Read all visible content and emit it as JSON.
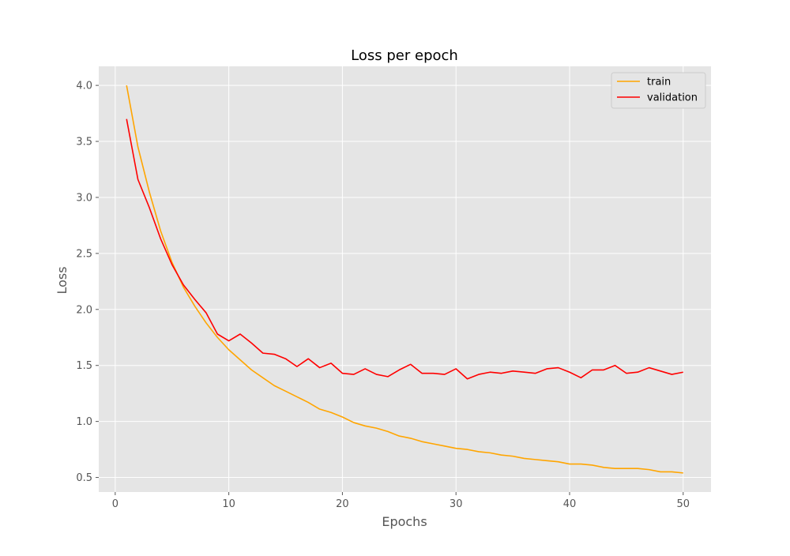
{
  "chart_data": {
    "type": "line",
    "title": "Loss per epoch",
    "xlabel": "Epochs",
    "ylabel": "Loss",
    "xlim": [
      -1.45,
      52.45
    ],
    "ylim": [
      0.37,
      4.17
    ],
    "xticks": [
      0,
      10,
      20,
      30,
      40,
      50
    ],
    "xtick_labels": [
      "0",
      "10",
      "20",
      "30",
      "40",
      "50"
    ],
    "yticks": [
      0.5,
      1.0,
      1.5,
      2.0,
      2.5,
      3.0,
      3.5,
      4.0
    ],
    "ytick_labels": [
      "0.5",
      "1.0",
      "1.5",
      "2.0",
      "2.5",
      "3.0",
      "3.5",
      "4.0"
    ],
    "grid": true,
    "legend_position": "upper right",
    "x": [
      1,
      2,
      3,
      4,
      5,
      6,
      7,
      8,
      9,
      10,
      11,
      12,
      13,
      14,
      15,
      16,
      17,
      18,
      19,
      20,
      21,
      22,
      23,
      24,
      25,
      26,
      27,
      28,
      29,
      30,
      31,
      32,
      33,
      34,
      35,
      36,
      37,
      38,
      39,
      40,
      41,
      42,
      43,
      44,
      45,
      46,
      47,
      48,
      49,
      50
    ],
    "series": [
      {
        "name": "train",
        "color": "#ffa500",
        "values": [
          4.0,
          3.45,
          3.05,
          2.7,
          2.42,
          2.2,
          2.03,
          1.88,
          1.75,
          1.64,
          1.55,
          1.46,
          1.39,
          1.32,
          1.27,
          1.22,
          1.17,
          1.11,
          1.08,
          1.04,
          0.99,
          0.96,
          0.94,
          0.91,
          0.87,
          0.85,
          0.82,
          0.8,
          0.78,
          0.76,
          0.75,
          0.73,
          0.72,
          0.7,
          0.69,
          0.67,
          0.66,
          0.65,
          0.64,
          0.62,
          0.62,
          0.61,
          0.59,
          0.58,
          0.58,
          0.58,
          0.57,
          0.55,
          0.55,
          0.54
        ]
      },
      {
        "name": "validation",
        "color": "#ff0000",
        "values": [
          3.7,
          3.16,
          2.91,
          2.63,
          2.4,
          2.22,
          2.09,
          1.97,
          1.78,
          1.72,
          1.78,
          1.7,
          1.61,
          1.6,
          1.56,
          1.49,
          1.56,
          1.48,
          1.52,
          1.43,
          1.42,
          1.47,
          1.42,
          1.4,
          1.46,
          1.51,
          1.43,
          1.43,
          1.42,
          1.47,
          1.38,
          1.42,
          1.44,
          1.43,
          1.45,
          1.44,
          1.43,
          1.47,
          1.48,
          1.44,
          1.39,
          1.46,
          1.46,
          1.5,
          1.43,
          1.44,
          1.48,
          1.45,
          1.42,
          1.44
        ]
      }
    ]
  }
}
